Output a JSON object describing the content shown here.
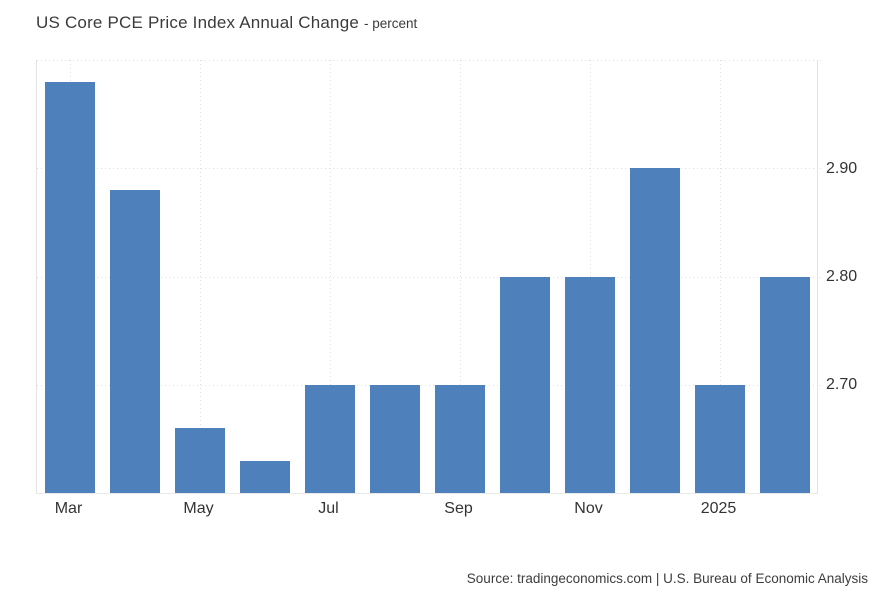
{
  "header": {
    "title": "US Core PCE Price Index Annual Change",
    "subtitle": "- percent"
  },
  "footer": {
    "source": "Source: tradingeconomics.com | U.S. Bureau of Economic Analysis"
  },
  "chart_data": {
    "type": "bar",
    "title": "US Core PCE Price Index Annual Change",
    "subtitle": "- percent",
    "categories": [
      "Mar 2024",
      "Apr 2024",
      "May 2024",
      "Jun 2024",
      "Jul 2024",
      "Aug 2024",
      "Sep 2024",
      "Oct 2024",
      "Nov 2024",
      "Dec 2024",
      "Jan 2025",
      "Feb 2025"
    ],
    "values": [
      2.98,
      2.88,
      2.66,
      2.63,
      2.7,
      2.7,
      2.7,
      2.8,
      2.8,
      2.9,
      2.7,
      2.8
    ],
    "bar_color": "#4e80bc",
    "ylim": [
      2.6,
      3.0
    ],
    "y_tick_values": [
      2.7,
      2.8,
      2.9
    ],
    "y_tick_labels": [
      "2.70",
      "2.80",
      "2.90"
    ],
    "y_label_side": "right",
    "gridline_values": [
      2.7,
      2.8,
      2.9,
      3.0
    ],
    "x_ticks": [
      {
        "index": 0,
        "label": "Mar"
      },
      {
        "index": 2,
        "label": "May"
      },
      {
        "index": 4,
        "label": "Jul"
      },
      {
        "index": 6,
        "label": "Sep"
      },
      {
        "index": 8,
        "label": "Nov"
      },
      {
        "index": 10,
        "label": "2025"
      }
    ],
    "grid_style": "dotted",
    "legend": false,
    "source": "Source: tradingeconomics.com | U.S. Bureau of Economic Analysis"
  }
}
